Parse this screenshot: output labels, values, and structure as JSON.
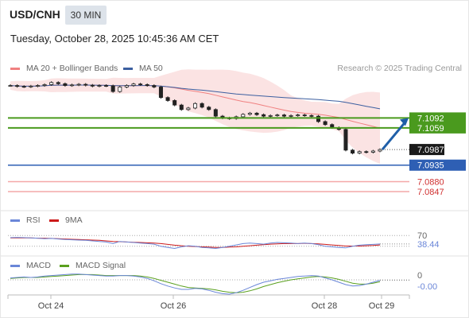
{
  "header": {
    "symbol": "USD/CNH",
    "interval": "30 MIN",
    "timestamp": "Tuesday, October 28, 2025 10:45:36 AM CET"
  },
  "legend": {
    "ma20": "MA 20 + Bollinger Bands",
    "ma50": "MA 50",
    "copyright": "Research © 2025 Trading Central"
  },
  "colors": {
    "ma20": "#f08080",
    "ma50": "#3c5fa0",
    "bollinger_fill": "#fadcdc",
    "resistance": "#4a9a1e",
    "support": "#2e5fb4",
    "last_price_bg": "#1a1a1a",
    "target_line": "#f4a8a8",
    "target_text": "#d03030",
    "rsi": "#6a86d8",
    "rsi_ma": "#cc1a1a",
    "macd": "#6a86d8",
    "macd_signal": "#5aa01e",
    "arrow": "#1f5fa8"
  },
  "chart_data": [
    {
      "type": "candlestick",
      "title": "USD/CNH",
      "y_range": [
        7.081,
        7.122
      ],
      "x_ticks": [
        "Oct 24",
        "Oct 26",
        "Oct 28",
        "Oct 29"
      ],
      "series_close": [
        7.12,
        7.1197,
        7.1196,
        7.1198,
        7.12,
        7.1203,
        7.121,
        7.1206,
        7.12,
        7.1202,
        7.1204,
        7.1201,
        7.1198,
        7.12,
        7.1199,
        7.118,
        7.1195,
        7.12,
        7.1205,
        7.1203,
        7.12,
        7.1195,
        7.116,
        7.115,
        7.1135,
        7.112,
        7.1125,
        7.114,
        7.1128,
        7.112,
        7.1098,
        7.1092,
        7.109,
        7.1096,
        7.1104,
        7.1108,
        7.1103,
        7.1098,
        7.11,
        7.1102,
        7.1098,
        7.11,
        7.1102,
        7.11,
        7.1098,
        7.108,
        7.107,
        7.106,
        7.1054,
        7.0985,
        7.0975,
        7.098,
        7.0978,
        7.0982,
        7.0987
      ],
      "ma20_label": "MA 20 + Bollinger Bands",
      "ma50_label": "MA 50",
      "levels": [
        {
          "label": "7.1092",
          "value": 7.1092,
          "kind": "resistance"
        },
        {
          "label": "7.1059",
          "value": 7.1059,
          "kind": "resistance"
        },
        {
          "label": "7.0987",
          "value": 7.0987,
          "kind": "last"
        },
        {
          "label": "7.0935",
          "value": 7.0935,
          "kind": "support"
        },
        {
          "label": "7.0880",
          "value": 7.088,
          "kind": "target"
        },
        {
          "label": "7.0847",
          "value": 7.0847,
          "kind": "target"
        }
      ]
    },
    {
      "type": "line",
      "title": "RSI",
      "legend": [
        "RSI",
        "9MA"
      ],
      "y_range": [
        0,
        100
      ],
      "y_ticks": [
        "70"
      ],
      "last_value_label": "38.44",
      "series": [
        {
          "name": "RSI",
          "values": [
            62,
            63,
            62,
            61,
            60,
            58,
            59,
            57,
            55,
            54,
            53,
            52,
            50,
            48,
            46,
            40,
            48,
            46,
            44,
            42,
            40,
            38,
            30,
            26,
            22,
            28,
            32,
            30,
            26,
            24,
            22,
            26,
            30,
            35,
            40,
            42,
            40,
            38,
            42,
            44,
            43,
            42,
            40,
            42,
            40,
            36,
            30,
            28,
            26,
            24,
            30,
            34,
            36,
            37,
            38.44
          ]
        },
        {
          "name": "9MA",
          "values": [
            61,
            61,
            61,
            61,
            60,
            60,
            59,
            58,
            57,
            56,
            55,
            54,
            53,
            52,
            50,
            48,
            47,
            46,
            45,
            44,
            43,
            42,
            40,
            37,
            34,
            32,
            30,
            29,
            28,
            27,
            26,
            26,
            27,
            28,
            30,
            32,
            34,
            36,
            38,
            39,
            40,
            40,
            40,
            41,
            40,
            39,
            37,
            35,
            33,
            31,
            31,
            31,
            32,
            33,
            35
          ]
        }
      ]
    },
    {
      "type": "line",
      "title": "MACD",
      "legend": [
        "MACD",
        "MACD Signal"
      ],
      "y_ticks": [
        "0"
      ],
      "last_value_label": "-0.00",
      "series": [
        {
          "name": "MACD",
          "values": [
            0.4,
            0.5,
            0.6,
            0.5,
            0.6,
            0.8,
            0.9,
            1.0,
            1.1,
            1.2,
            1.2,
            1.1,
            1.0,
            0.9,
            0.8,
            0.8,
            0.9,
            0.9,
            0.8,
            0.6,
            0.3,
            -0.2,
            -0.8,
            -1.3,
            -1.7,
            -2.0,
            -2.0,
            -1.8,
            -1.9,
            -2.2,
            -2.6,
            -2.9,
            -3.0,
            -2.7,
            -2.2,
            -1.6,
            -1.0,
            -0.5,
            -0.2,
            0.1,
            0.3,
            0.5,
            0.7,
            0.8,
            0.9,
            0.8,
            0.4,
            0.0,
            -0.5,
            -1.0,
            -1.3,
            -1.2,
            -0.9,
            -0.5,
            -0.1
          ]
        },
        {
          "name": "MACD Signal",
          "values": [
            0.3,
            0.4,
            0.5,
            0.5,
            0.5,
            0.6,
            0.7,
            0.8,
            0.9,
            1.0,
            1.1,
            1.1,
            1.1,
            1.0,
            0.9,
            0.9,
            0.9,
            0.9,
            0.9,
            0.8,
            0.6,
            0.3,
            -0.1,
            -0.5,
            -0.9,
            -1.3,
            -1.6,
            -1.7,
            -1.8,
            -1.9,
            -2.1,
            -2.4,
            -2.6,
            -2.7,
            -2.6,
            -2.3,
            -1.9,
            -1.4,
            -1.0,
            -0.6,
            -0.3,
            0.0,
            0.2,
            0.4,
            0.6,
            0.7,
            0.6,
            0.4,
            0.1,
            -0.3,
            -0.7,
            -0.9,
            -0.9,
            -0.7,
            -0.4
          ]
        }
      ]
    }
  ]
}
